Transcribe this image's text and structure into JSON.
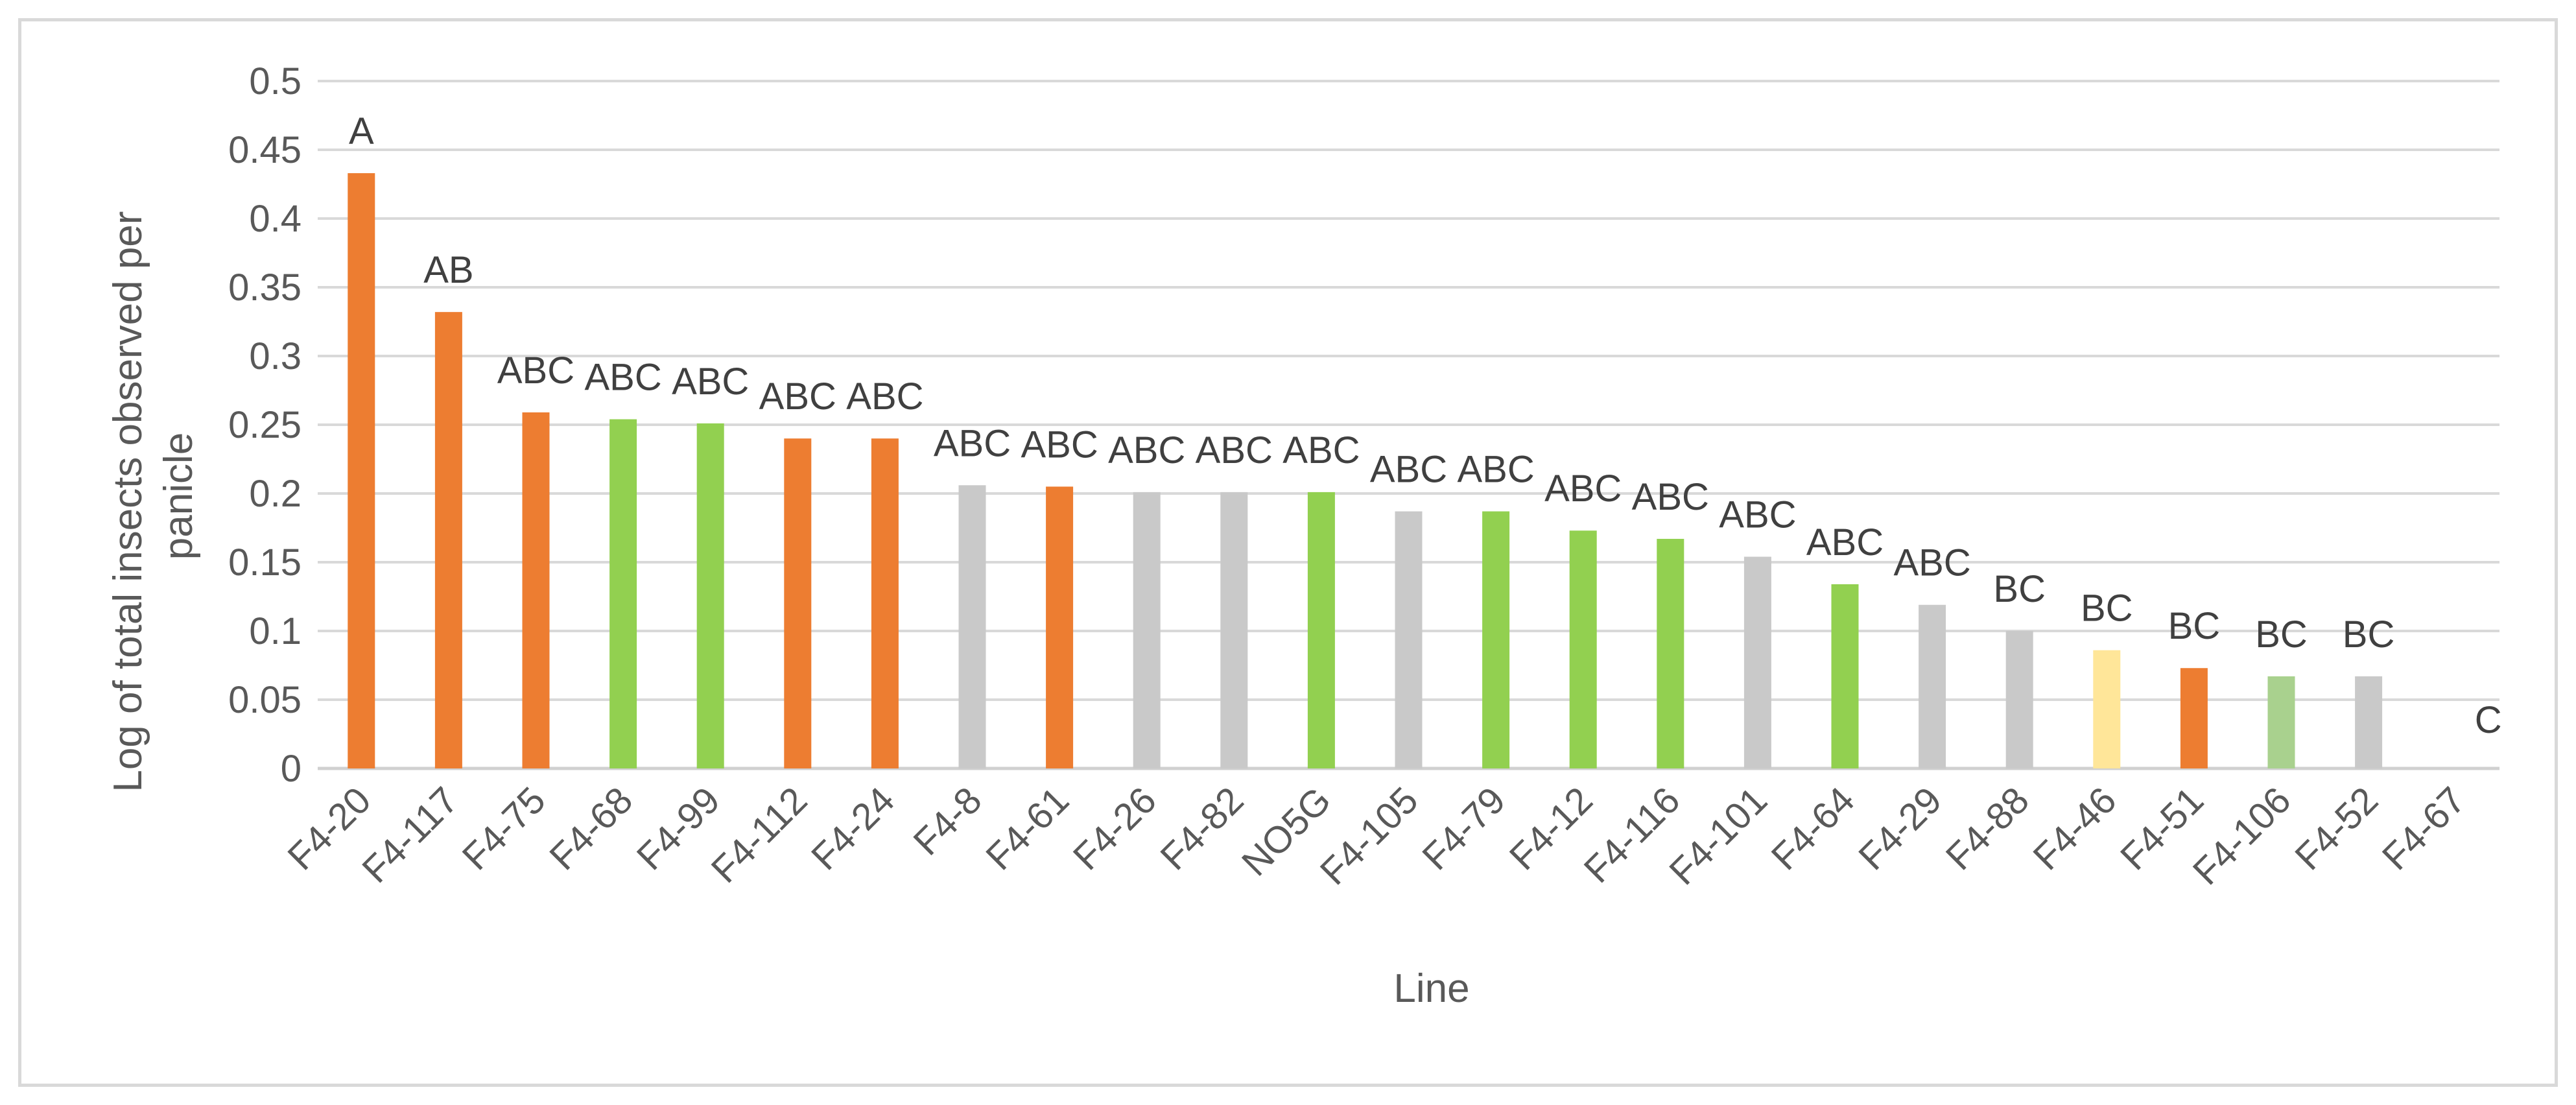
{
  "chart_data": {
    "type": "bar",
    "title": "",
    "xlabel": "Line",
    "ylabel_lines": [
      "Log of total insects observed per",
      "panicle"
    ],
    "ylim": [
      0,
      0.5
    ],
    "y_ticks": [
      "0",
      "0.05",
      "0.1",
      "0.15",
      "0.2",
      "0.25",
      "0.3",
      "0.35",
      "0.4",
      "0.45",
      "0.5"
    ],
    "grid": true,
    "legend": "none",
    "colors": {
      "orange": "#ed7d31",
      "green": "#92d050",
      "gray": "#c9c9c9",
      "yellow": "#ffe699",
      "light_green": "#a9d18e"
    },
    "categories": [
      "F4-20",
      "F4-117",
      "F4-75",
      "F4-68",
      "F4-99",
      "F4-112",
      "F4-24",
      "F4-8",
      "F4-61",
      "F4-26",
      "F4-82",
      "NO5G",
      "F4-105",
      "F4-79",
      "F4-12",
      "F4-116",
      "F4-101",
      "F4-64",
      "F4-29",
      "F4-88",
      "F4-46",
      "F4-51",
      "F4-106",
      "F4-52",
      "F4-67"
    ],
    "values": [
      0.433,
      0.332,
      0.259,
      0.254,
      0.251,
      0.24,
      0.24,
      0.206,
      0.205,
      0.201,
      0.201,
      0.201,
      0.187,
      0.187,
      0.173,
      0.167,
      0.154,
      0.134,
      0.119,
      0.1,
      0.086,
      0.073,
      0.067,
      0.067,
      0
    ],
    "bar_colors": [
      "orange",
      "orange",
      "orange",
      "green",
      "green",
      "orange",
      "orange",
      "gray",
      "orange",
      "gray",
      "gray",
      "green",
      "gray",
      "green",
      "green",
      "green",
      "gray",
      "green",
      "gray",
      "gray",
      "yellow",
      "orange",
      "light_green",
      "gray",
      "gray"
    ],
    "annotations": [
      "A",
      "AB",
      "ABC",
      "ABC",
      "ABC",
      "ABC",
      "ABC",
      "ABC",
      "ABC",
      "ABC",
      "ABC",
      "ABC",
      "ABC",
      "ABC",
      "ABC",
      "ABC",
      "ABC",
      "ABC",
      "ABC",
      "BC",
      "BC",
      "BC",
      "BC",
      "BC",
      "C"
    ]
  }
}
